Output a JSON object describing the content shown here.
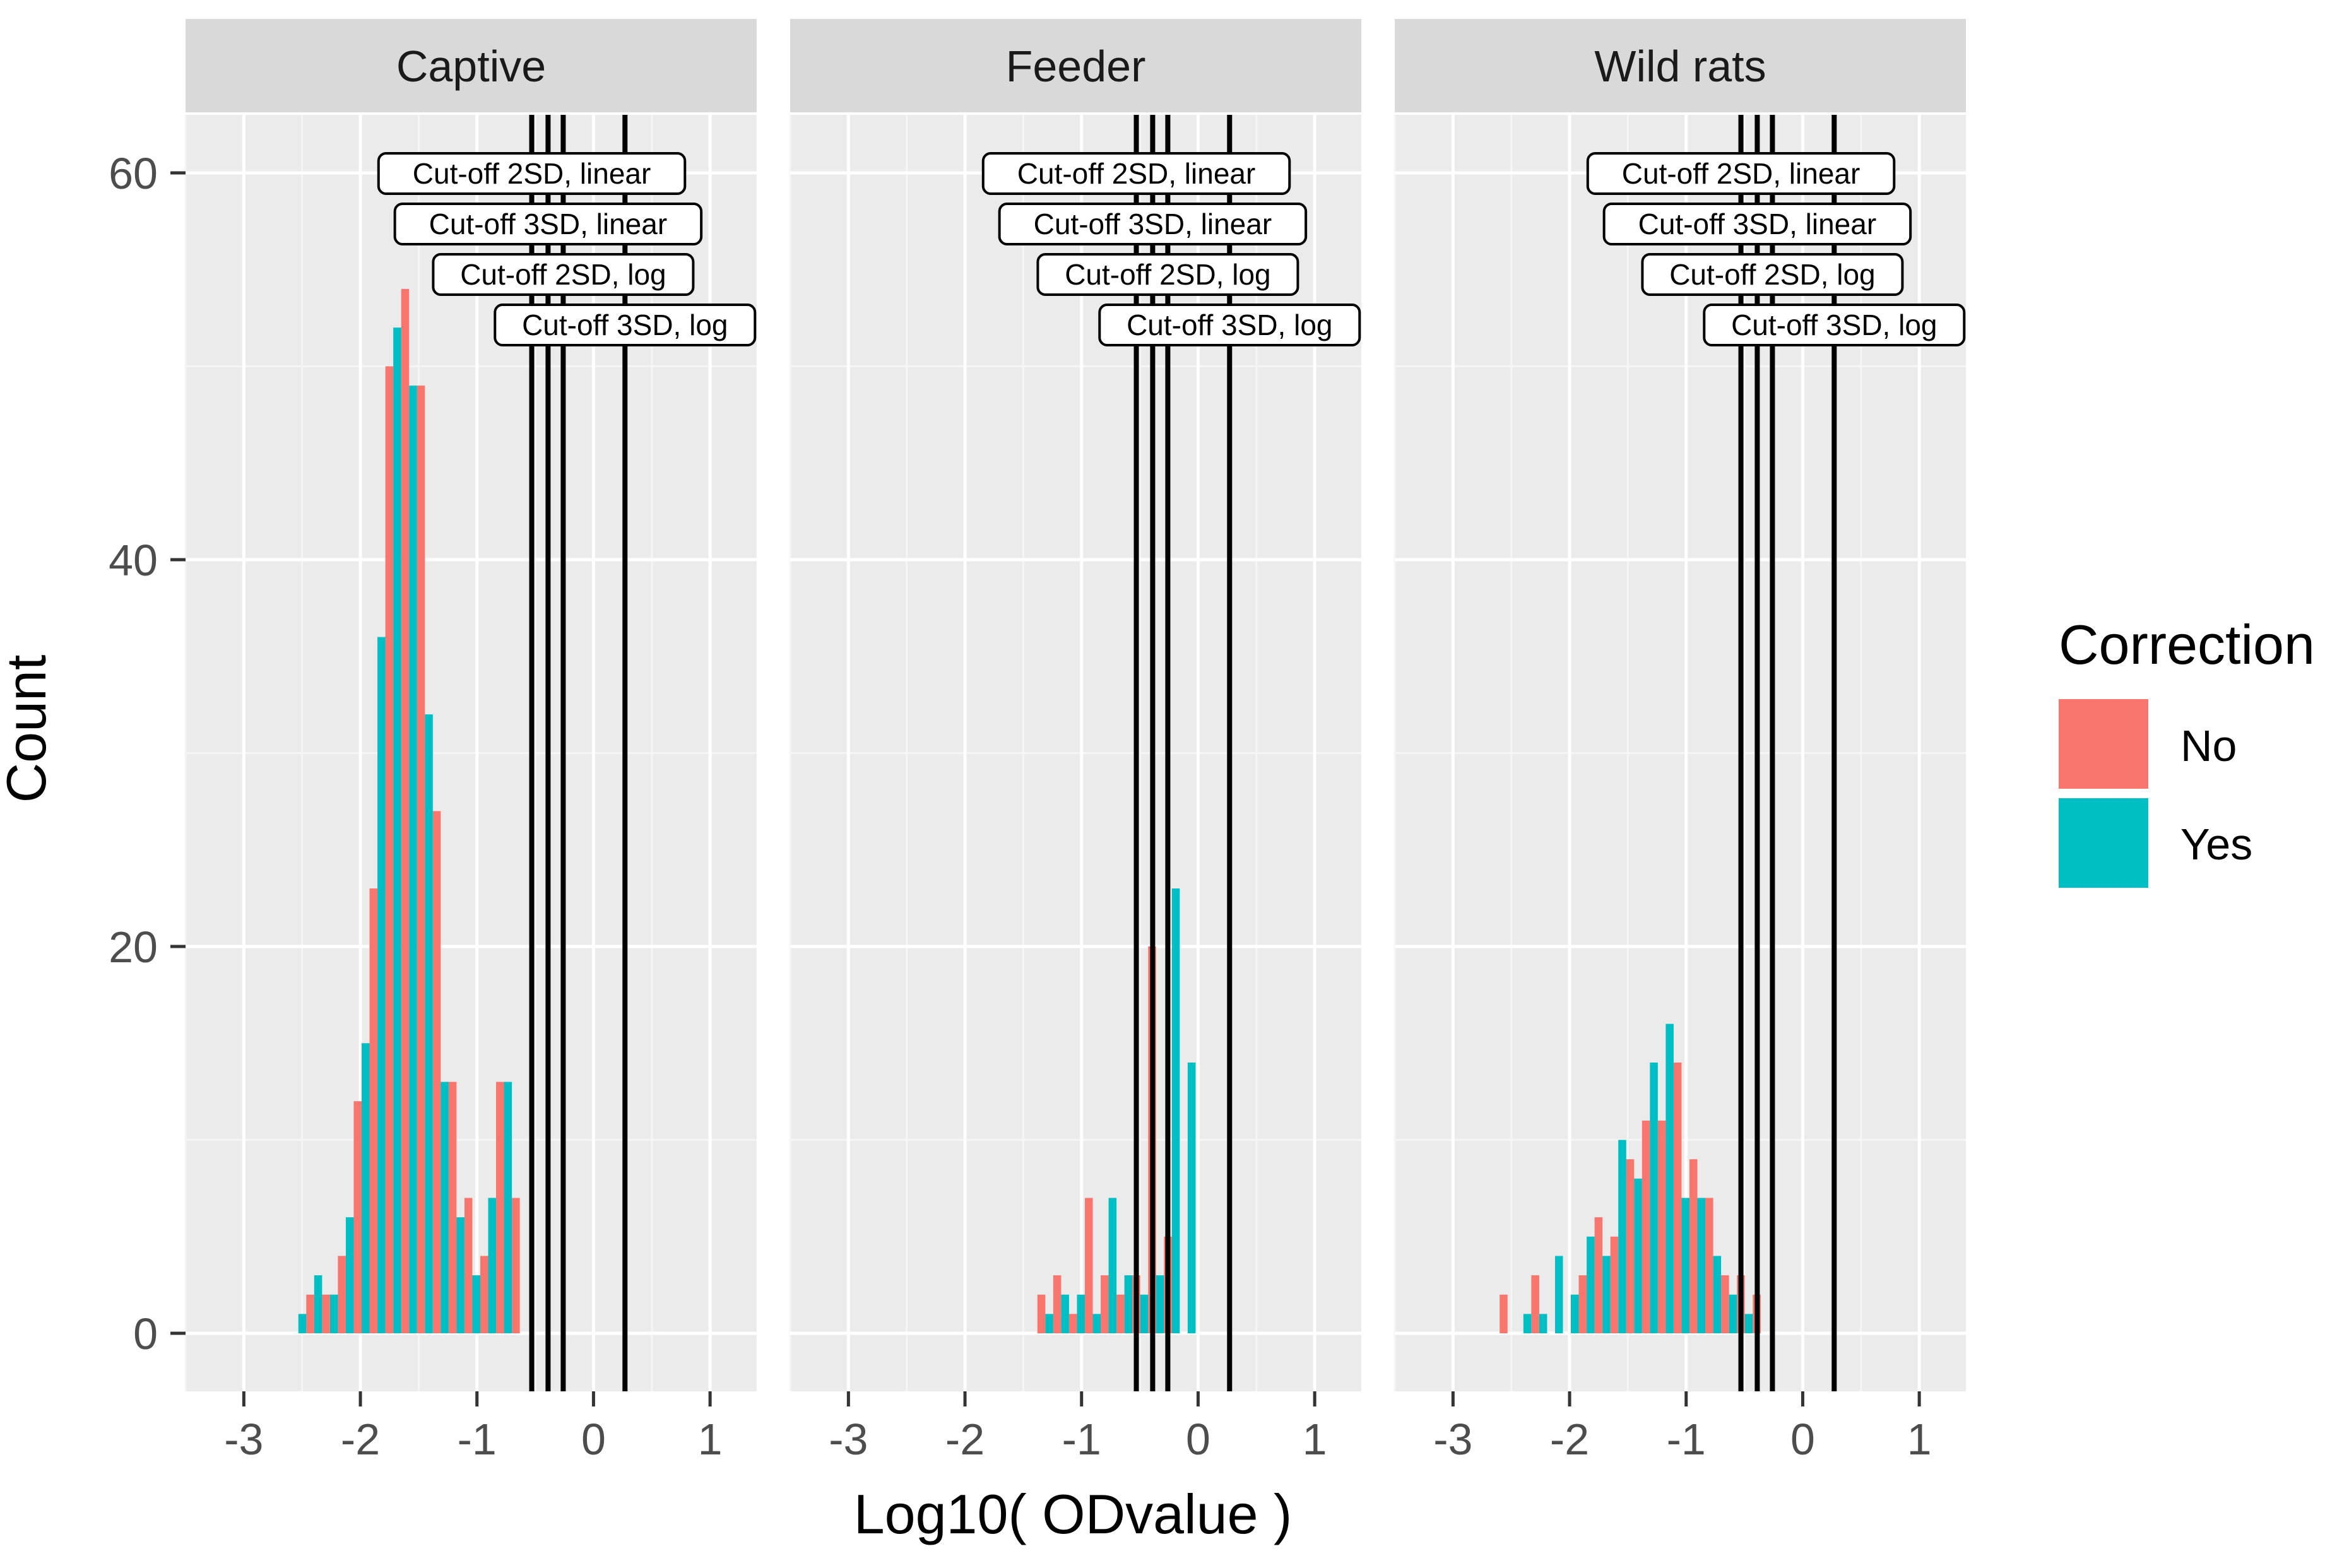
{
  "colors": {
    "no": "#F8766D",
    "yes": "#00BFC4",
    "panel_bg": "#EBEBEB",
    "strip_bg": "#D9D9D9",
    "grid_major": "#FFFFFF",
    "grid_minor": "#F5F5F5"
  },
  "chart_data": {
    "type": "bar",
    "subtype": "faceted dodged histogram",
    "xlabel": "Log10( ODvalue )",
    "ylabel": "Count",
    "xlim": [
      -3.5,
      1.4
    ],
    "ylim": [
      -3,
      63
    ],
    "x_ticks": [
      -3,
      -2,
      -1,
      0,
      1
    ],
    "x_tick_labels": [
      "-3",
      "-2",
      "-1",
      "0",
      "1"
    ],
    "y_ticks": [
      0,
      20,
      40,
      60
    ],
    "y_tick_labels": [
      "0",
      "20",
      "40",
      "60"
    ],
    "bin_width": 0.1357,
    "bin_start": -2.6,
    "legend": {
      "title": "Correction",
      "position": "right",
      "items": [
        {
          "label": "No",
          "color": "#F8766D"
        },
        {
          "label": "Yes",
          "color": "#00BFC4"
        }
      ]
    },
    "cutoffs": [
      {
        "label": "Cut-off 2SD, linear",
        "x": -0.53
      },
      {
        "label": "Cut-off 3SD, linear",
        "x": -0.39
      },
      {
        "label": "Cut-off 2SD, log",
        "x": -0.26
      },
      {
        "label": "Cut-off 3SD, log",
        "x": 0.27
      }
    ],
    "facets": [
      {
        "name": "Captive",
        "no": [
          0,
          2,
          2,
          4,
          12,
          23,
          50,
          54,
          49,
          27,
          13,
          7,
          4,
          13,
          7
        ],
        "yes": [
          1,
          3,
          2,
          6,
          15,
          36,
          52,
          49,
          32,
          13,
          6,
          3,
          7,
          13,
          0
        ]
      },
      {
        "name": "Feeder",
        "no": [
          0,
          0,
          0,
          0,
          0,
          0,
          0,
          0,
          0,
          2,
          3,
          1,
          7,
          3,
          2,
          3,
          20,
          5,
          0
        ],
        "yes": [
          0,
          0,
          0,
          0,
          0,
          0,
          0,
          0,
          0,
          1,
          2,
          2,
          1,
          7,
          3,
          2,
          3,
          23,
          14,
          0
        ],
        "note": "bins aligned with common bin_start"
      },
      {
        "name": "Wild rats",
        "no": [
          2,
          0,
          3,
          0,
          0,
          3,
          6,
          5,
          9,
          11,
          11,
          14,
          9,
          7,
          3,
          3,
          2,
          0
        ],
        "yes": [
          0,
          1,
          1,
          4,
          2,
          5,
          4,
          10,
          8,
          14,
          16,
          7,
          7,
          4,
          2,
          1
        ],
        "note": "bins aligned with common bin_start"
      }
    ]
  }
}
